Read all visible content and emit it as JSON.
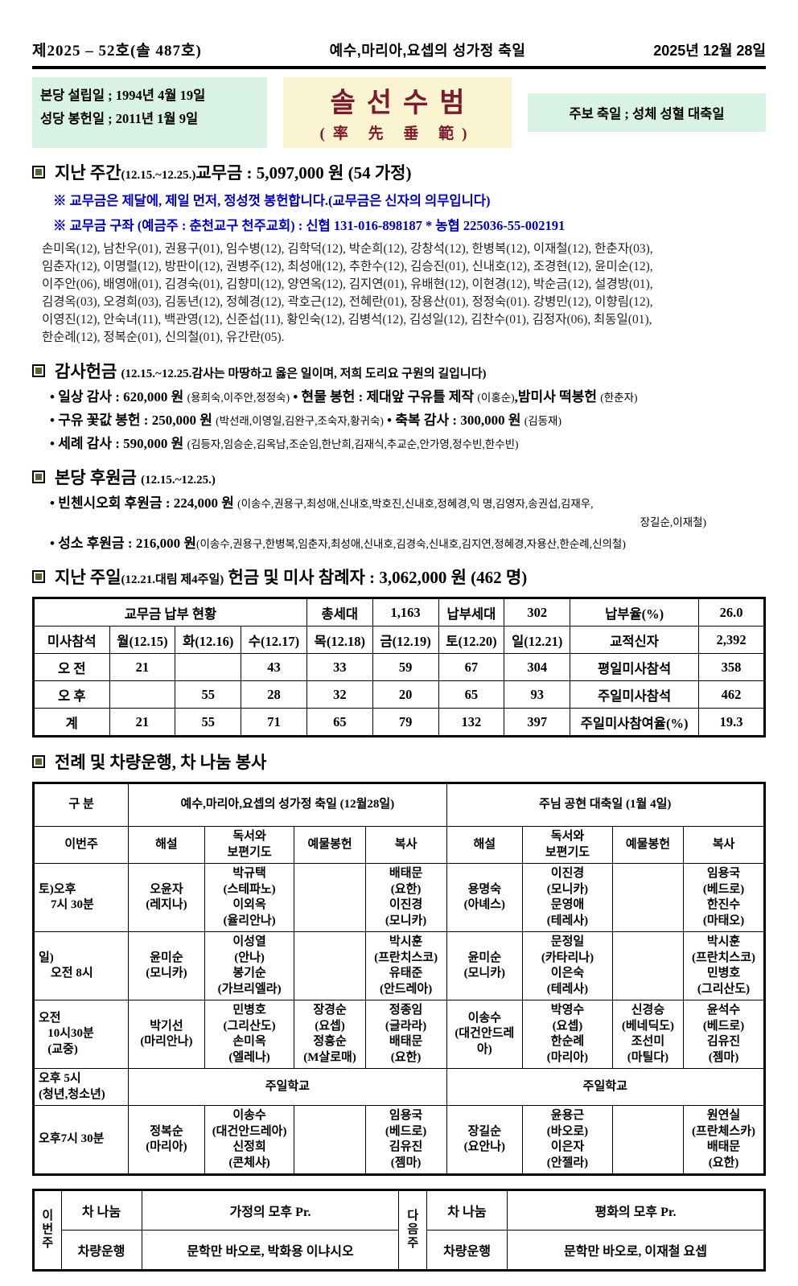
{
  "colors": {
    "mint_box": "#d8f2e4",
    "yellow_box": "#faf5d0",
    "motto_maroon": "#7d1a2e",
    "note_blue": "#0000cd",
    "marker_green": "#4d6b33"
  },
  "masthead": {
    "issue": "제2025 – 52호(솔 487호)",
    "title": "예수,마리아,요셉의 성가정 축일",
    "date": "2025년 12월 28일"
  },
  "info": {
    "left_line1": "본당 설립일 ; 1994년 4월 19일",
    "left_line2": "성당 봉헌일 ; 2011년 1월  9일",
    "motto": "솔선수범",
    "motto_hanja": "(率 先 垂 範)",
    "right": "주보 축일 ; 성체 성혈 대축일"
  },
  "sections": {
    "week": {
      "heading": [
        {
          "t": "지난 주간",
          "s": "xl"
        },
        {
          "t": "(12.15.~12.25.)",
          "s": "md"
        },
        {
          "t": "교무금 : 5,097,000 원 (54 가정)",
          "s": "xl"
        }
      ],
      "notes": [
        "※ 교무금은 제달에, 제일 먼저, 정성껏 봉헌합니다.(교무금은 신자의 의무입니다)",
        "※ 교무금 구좌 (예금주 : 춘천교구 천주교회) : 신협  131-016-898187  * 농협  225036-55-002191"
      ],
      "names": "손미옥(12), 남찬우(01), 권용구(01), 임수병(12), 김학덕(12), 박순희(12), 강창석(12), 한병복(12), 이재철(12), 한춘자(03),\n임춘자(12), 이명렬(12), 방판이(12), 권병주(12), 최성애(12), 추한수(12), 김승진(01), 신내호(12), 조경현(12), 윤미순(12),\n이주안(06), 배영애(01), 김경숙(01), 김향미(12), 양연옥(12), 김지연(01), 유배현(12), 이현경(12), 박순금(12), 설경방(01),\n김경옥(03), 오경희(03), 김동년(12), 정혜경(12), 곽호근(12), 전혜란(01), 장용산(01), 정정숙(01). 강병민(12), 이향림(12),\n이영진(12), 안숙녀(11), 백관영(12), 신준섭(11), 황인숙(12), 김병석(12), 김성일(12), 김찬수(01), 김정자(06), 최동일(01),\n한순례(12), 정복순(01), 신의철(01), 유간란(05)."
    },
    "thanks": {
      "heading": [
        {
          "t": "감사헌금 ",
          "s": "xl"
        },
        {
          "t": "(12.15.~12.25.감사는 마땅하고 옳은 일이며, 저희 도리요 구원의 길입니다)",
          "s": "md"
        }
      ],
      "bullets": [
        [
          {
            "t": "• 일상 감사 : 620,000 원 ",
            "s": "lg"
          },
          {
            "t": "(용희숙,이주안,정정숙)",
            "s": "sm"
          },
          {
            "t": " • 현물 봉헌 : 제대앞 구유틀 제작 ",
            "s": "lg"
          },
          {
            "t": "(이홍순)",
            "s": "sm"
          },
          {
            "t": ",밤미사 떡봉헌 ",
            "s": "lg"
          },
          {
            "t": "(한춘자)",
            "s": "sm"
          }
        ],
        [
          {
            "t": "• 구유 꽃값 봉헌 : 250,000 원 ",
            "s": "lg"
          },
          {
            "t": "(박선래,이영일,김완구,조숙자,황귀숙)",
            "s": "sm"
          },
          {
            "t": " • 축복 감사 : 300,000 원 ",
            "s": "lg"
          },
          {
            "t": "(김동재)",
            "s": "sm"
          }
        ],
        [
          {
            "t": "• 세례 감사 : 590,000 원 ",
            "s": "lg"
          },
          {
            "t": "(김등자,임승순,김옥남,조순임,한난희,김재식,추교순,안가영,정수빈,한수빈)",
            "s": "sm"
          }
        ]
      ]
    },
    "support": {
      "heading": [
        {
          "t": "본당 후원금 ",
          "s": "xl"
        },
        {
          "t": "(12.15.~12.25.)",
          "s": "md"
        }
      ],
      "bullets": [
        [
          {
            "t": "• 빈첸시오회 후원금 : 224,000 원 ",
            "s": "lg"
          },
          {
            "t": "(이송수,권용구,최성애,신내호,박호진,신내호,정혜경,익 명,김영자,송권섭,김재우,",
            "s": "sm"
          }
        ],
        [
          {
            "t": "• 성소 후원금 : 216,000 원",
            "s": "lg"
          },
          {
            "t": "(이송수,권용구,한병복,임춘자,최성애,신내호,김경숙,신내호,김지연,정혜경,자용산,한순례,신의철)",
            "s": "sm"
          }
        ]
      ],
      "continuation": "장길순,이재철)"
    },
    "sunday": {
      "heading": [
        {
          "t": "지난 주일",
          "s": "xl"
        },
        {
          "t": "(12.21.대림 제4주일)",
          "s": "md"
        },
        {
          "t": " 헌금 및 미사 참례자 : 3,062,000 원 (462 명)",
          "s": "xl"
        }
      ]
    },
    "liturgy": {
      "heading": [
        {
          "t": "전례 및 차량운행, 차 나눔 봉사",
          "s": "xl"
        }
      ]
    }
  },
  "tables": {
    "stats": {
      "rows": [
        [
          {
            "t": "교무금 납부 현황",
            "cs": 4
          },
          {
            "t": "총세대"
          },
          {
            "t": "1,163"
          },
          {
            "t": "납부세대"
          },
          {
            "t": "302"
          },
          {
            "t": "납부율(%)"
          },
          {
            "t": "26.0"
          }
        ],
        [
          {
            "t": "미사참석"
          },
          {
            "t": "월(12.15)"
          },
          {
            "t": "화(12.16)"
          },
          {
            "t": "수(12.17)"
          },
          {
            "t": "목(12.18)"
          },
          {
            "t": "금(12.19)"
          },
          {
            "t": "토(12.20)"
          },
          {
            "t": "일(12.21)"
          },
          {
            "t": "교적신자"
          },
          {
            "t": "2,392"
          }
        ],
        [
          {
            "t": "오 전"
          },
          {
            "t": "21"
          },
          {
            "t": ""
          },
          {
            "t": "43"
          },
          {
            "t": "33"
          },
          {
            "t": "59"
          },
          {
            "t": "67"
          },
          {
            "t": "304"
          },
          {
            "t": "평일미사참석"
          },
          {
            "t": "358"
          }
        ],
        [
          {
            "t": "오 후"
          },
          {
            "t": ""
          },
          {
            "t": "55"
          },
          {
            "t": "28"
          },
          {
            "t": "32"
          },
          {
            "t": "20"
          },
          {
            "t": "65"
          },
          {
            "t": "93"
          },
          {
            "t": "주일미사참석"
          },
          {
            "t": "462"
          }
        ],
        [
          {
            "t": "계"
          },
          {
            "t": "21"
          },
          {
            "t": "55"
          },
          {
            "t": "71"
          },
          {
            "t": "65"
          },
          {
            "t": "79"
          },
          {
            "t": "132"
          },
          {
            "t": "397"
          },
          {
            "t": "주일미사참여율(%)"
          },
          {
            "t": "19.3"
          }
        ]
      ]
    },
    "schedule": {
      "rows": [
        [
          {
            "t": "구  분"
          },
          {
            "t": "예수,마리아,요셉의 성가정 축일 (12월28일)",
            "cs": 4
          },
          {
            "t": "주님 공현 대축일 (1월 4일)",
            "cs": 4
          }
        ],
        [
          {
            "t": "이번주"
          },
          {
            "t": "해설"
          },
          {
            "t": "독서와\n보편기도"
          },
          {
            "t": "예물봉헌"
          },
          {
            "t": "복사"
          },
          {
            "t": "해설"
          },
          {
            "t": "독서와\n보편기도"
          },
          {
            "t": "예물봉헌"
          },
          {
            "t": "복사"
          }
        ],
        [
          {
            "t": "토)오후\n    7시 30분",
            "c": "left"
          },
          {
            "t": "오윤자\n(레지나)"
          },
          {
            "t": "박규택\n(스테파노)\n이외옥\n(율리안나)"
          },
          {
            "t": ""
          },
          {
            "t": "배태문\n(요한)\n이진경\n(모니카)"
          },
          {
            "t": "용명숙\n(아녜스)"
          },
          {
            "t": "이진경\n(모니카)\n문영애\n(테레사)"
          },
          {
            "t": ""
          },
          {
            "t": "임용국\n(베드로)\n한진수\n(마태오)"
          }
        ],
        [
          {
            "t": "일)\n    오전 8시",
            "c": "left"
          },
          {
            "t": "윤미순\n(모니카)"
          },
          {
            "t": "이성열\n(안나)\n봉기순\n(가브리엘라)"
          },
          {
            "t": ""
          },
          {
            "t": "박시훈\n(프란치스코)\n유태준\n(안드레아)"
          },
          {
            "t": "윤미순\n(모니카)"
          },
          {
            "t": "문정일\n(카타리나)\n이은숙\n(테레사)"
          },
          {
            "t": ""
          },
          {
            "t": "박시훈\n(프란치스코)\n민병호\n(그리산도)"
          }
        ],
        [
          {
            "t": "오전\n   10시30분\n   (교중)",
            "c": "left"
          },
          {
            "t": "박기선\n(마리안나)"
          },
          {
            "t": "민병호\n(그리산도)\n손미옥\n(엘레나)"
          },
          {
            "t": "장경순\n(요셉)\n정흥순\n(M살로매)"
          },
          {
            "t": "정종임\n(글라라)\n배태문\n(요한)"
          },
          {
            "t": "이송수\n(대건안드레아)"
          },
          {
            "t": "박영수\n(요셉)\n한순례\n(마리아)"
          },
          {
            "t": "신경승\n(베네딕도)\n조선미\n(마틸다)"
          },
          {
            "t": "윤석수\n(베드로)\n김유진\n(젬마)"
          }
        ],
        [
          {
            "t": "오후 5시\n(청년,청소년)",
            "c": "left"
          },
          {
            "t": "주일학교",
            "cs": 4
          },
          {
            "t": "주일학교",
            "cs": 4
          }
        ],
        [
          {
            "t": "오후7시 30분",
            "c": "left"
          },
          {
            "t": "정복순\n(마리아)"
          },
          {
            "t": "이송수\n(대건안드레아)\n신정희\n(콘체샤)"
          },
          {
            "t": ""
          },
          {
            "t": "임용국\n(베드로)\n김유진\n(젬마)"
          },
          {
            "t": "장길순\n(요안나)"
          },
          {
            "t": "윤용근\n(바오로)\n이은자\n(안젤라)"
          },
          {
            "t": ""
          },
          {
            "t": "원연실\n(프란체스카)\n배태문\n(요한)"
          }
        ]
      ]
    },
    "weekly": {
      "rows": [
        [
          {
            "t": "이\n번\n주",
            "rs": 2,
            "c": "vert"
          },
          {
            "t": "차 나눔"
          },
          {
            "t": "가정의 모후 Pr."
          },
          {
            "t": "다\n음\n주",
            "rs": 2,
            "c": "vert"
          },
          {
            "t": "차 나눔"
          },
          {
            "t": "평화의 모후 Pr."
          }
        ],
        [
          {
            "t": "차량운행"
          },
          {
            "t": "문학만 바오로,  박화용 이냐시오"
          },
          {
            "t": "차량운행"
          },
          {
            "t": "문학만 바오로,  이재철 요셉"
          }
        ]
      ]
    }
  }
}
